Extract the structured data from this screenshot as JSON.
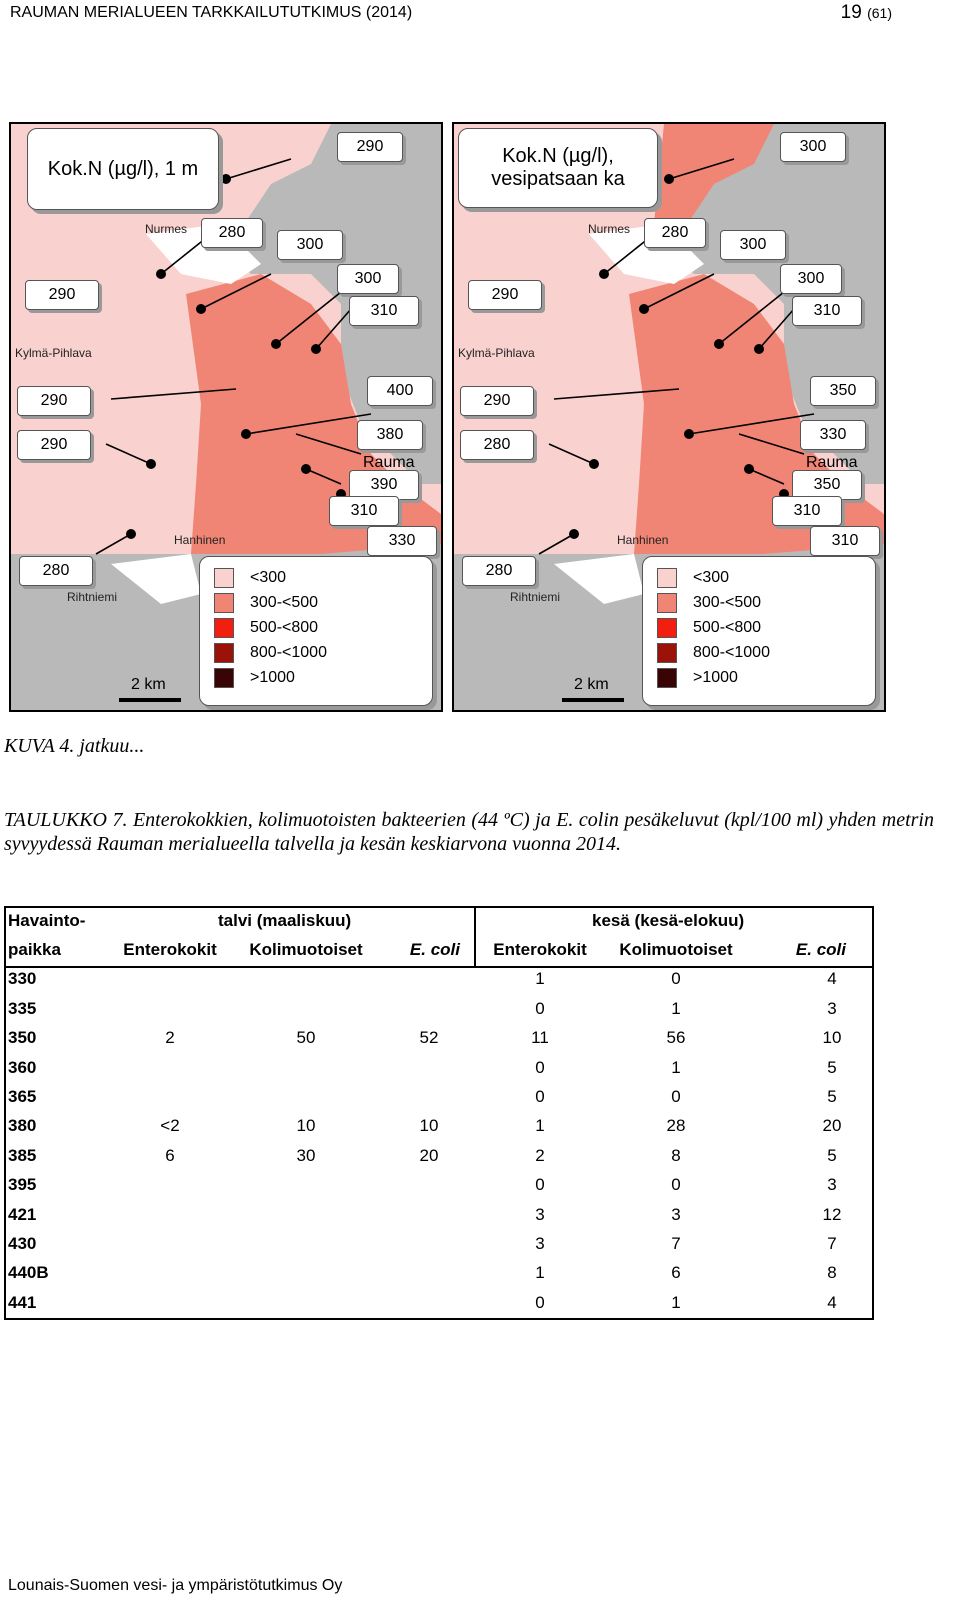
{
  "header": {
    "title": "RAUMAN MERIALUEEN TARKKAILUTUTKIMUS (2014)",
    "page": "19",
    "page_total": "(61)"
  },
  "maps": [
    {
      "title": "Kok.N (µg/l), 1 m",
      "labels": [
        "290",
        "280",
        "300",
        "300",
        "310",
        "290",
        "290",
        "400",
        "290",
        "380",
        "390",
        "310",
        "330",
        "280"
      ],
      "places": {
        "nurmes": "Nurmes",
        "kylma": "Kylmä-Pihlava",
        "rauma": "Rauma",
        "hanhinen": "Hanhinen",
        "rihtniemi": "Rihtniemi"
      },
      "scale": "2 km"
    },
    {
      "title": "Kok.N (µg/l), vesipatsaan ka",
      "labels": [
        "300",
        "280",
        "300",
        "300",
        "310",
        "290",
        "290",
        "350",
        "280",
        "330",
        "350",
        "310",
        "310",
        "280"
      ],
      "places": {
        "nurmes": "Nurmes",
        "kylma": "Kylmä-Pihlava",
        "rauma": "Rauma",
        "hanhinen": "Hanhinen",
        "rihtniemi": "Rihtniemi"
      },
      "scale": "2 km"
    }
  ],
  "legend": [
    {
      "label": "<300",
      "color": "#f9d2cf"
    },
    {
      "label": "300-<500",
      "color": "#f08575"
    },
    {
      "label": "500-<800",
      "color": "#f21e10"
    },
    {
      "label": "800-<1000",
      "color": "#9b1208"
    },
    {
      "label": ">1000",
      "color": "#3b0404"
    }
  ],
  "caption": "KUVA 4. jatkuu...",
  "table_caption": "TAULUKKO 7. Enterokokkien, kolimuotoisten bakteerien (44 ºC) ja E. colin pesäkeluvut (kpl/100 ml) yhden metrin syvyydessä Rauman merialueella talvella ja kesän keskiarvona vuonna 2014.",
  "table": {
    "header1": {
      "site": "Havainto-",
      "winter": "talvi (maaliskuu)",
      "summer": "kesä (kesä-elokuu)"
    },
    "header2": {
      "site": "paikka",
      "entero": "Enterokokit",
      "coli": "Kolimuotoiset",
      "ecoli": "E. coli",
      "entero2": "Enterokokit",
      "coli2": "Kolimuotoiset",
      "ecoli2": "E. coli"
    },
    "rows": [
      {
        "site": "330",
        "w1": "",
        "w2": "",
        "w3": "",
        "s1": "1",
        "s2": "0",
        "s3": "4"
      },
      {
        "site": "335",
        "w1": "",
        "w2": "",
        "w3": "",
        "s1": "0",
        "s2": "1",
        "s3": "3"
      },
      {
        "site": "350",
        "w1": "2",
        "w2": "50",
        "w3": "52",
        "s1": "11",
        "s2": "56",
        "s3": "10"
      },
      {
        "site": "360",
        "w1": "",
        "w2": "",
        "w3": "",
        "s1": "0",
        "s2": "1",
        "s3": "5"
      },
      {
        "site": "365",
        "w1": "",
        "w2": "",
        "w3": "",
        "s1": "0",
        "s2": "0",
        "s3": "5"
      },
      {
        "site": "380",
        "w1": "<2",
        "w2": "10",
        "w3": "10",
        "s1": "1",
        "s2": "28",
        "s3": "20"
      },
      {
        "site": "385",
        "w1": "6",
        "w2": "30",
        "w3": "20",
        "s1": "2",
        "s2": "8",
        "s3": "5"
      },
      {
        "site": "395",
        "w1": "",
        "w2": "",
        "w3": "",
        "s1": "0",
        "s2": "0",
        "s3": "3"
      },
      {
        "site": "421",
        "w1": "",
        "w2": "",
        "w3": "",
        "s1": "3",
        "s2": "3",
        "s3": "12"
      },
      {
        "site": "430",
        "w1": "",
        "w2": "",
        "w3": "",
        "s1": "3",
        "s2": "7",
        "s3": "7"
      },
      {
        "site": "440B",
        "w1": "",
        "w2": "",
        "w3": "",
        "s1": "1",
        "s2": "6",
        "s3": "8"
      },
      {
        "site": "441",
        "w1": "",
        "w2": "",
        "w3": "",
        "s1": "0",
        "s2": "1",
        "s3": "4"
      }
    ]
  },
  "footer": "Lounais-Suomen vesi- ja ympäristötutkimus Oy"
}
